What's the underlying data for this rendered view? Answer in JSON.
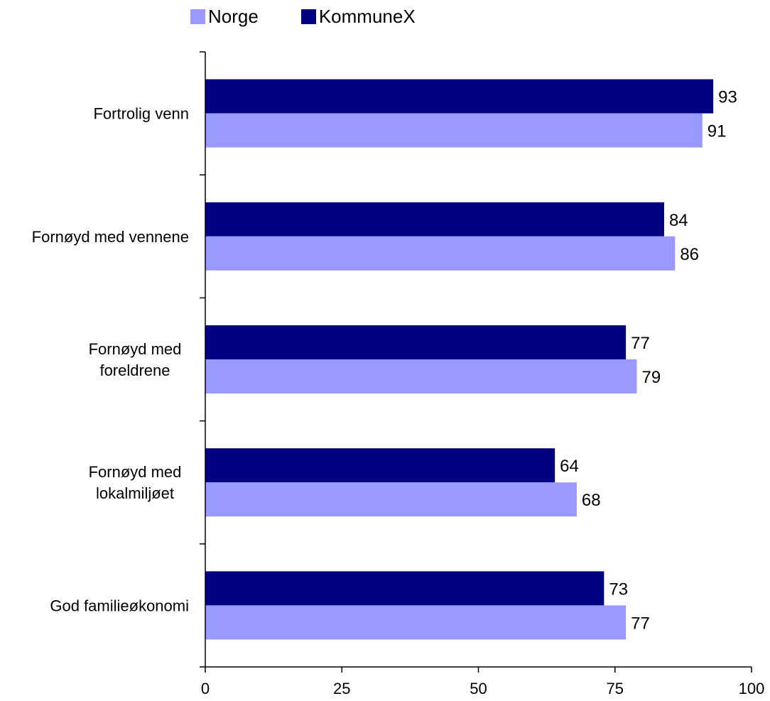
{
  "chart_data": {
    "type": "bar",
    "orientation": "horizontal",
    "categories": [
      [
        "Fortrolig venn"
      ],
      [
        "Fornøyd med vennene"
      ],
      [
        "Fornøyd med",
        "foreldrene"
      ],
      [
        "Fornøyd med",
        "lokalmiljøet"
      ],
      [
        "God familieøkonomi"
      ]
    ],
    "series": [
      {
        "name": "KommuneX",
        "color": "#000080",
        "values": [
          93,
          84,
          77,
          64,
          73
        ]
      },
      {
        "name": "Norge",
        "color": "#9999FF",
        "values": [
          91,
          86,
          79,
          68,
          77
        ]
      }
    ],
    "legend_order": [
      "Norge",
      "KommuneX"
    ],
    "legend_position": "top",
    "xlim": [
      0,
      100
    ],
    "x_ticks": [
      0,
      25,
      50,
      75,
      100
    ],
    "grid": false,
    "title": "",
    "xlabel": "",
    "ylabel": ""
  }
}
